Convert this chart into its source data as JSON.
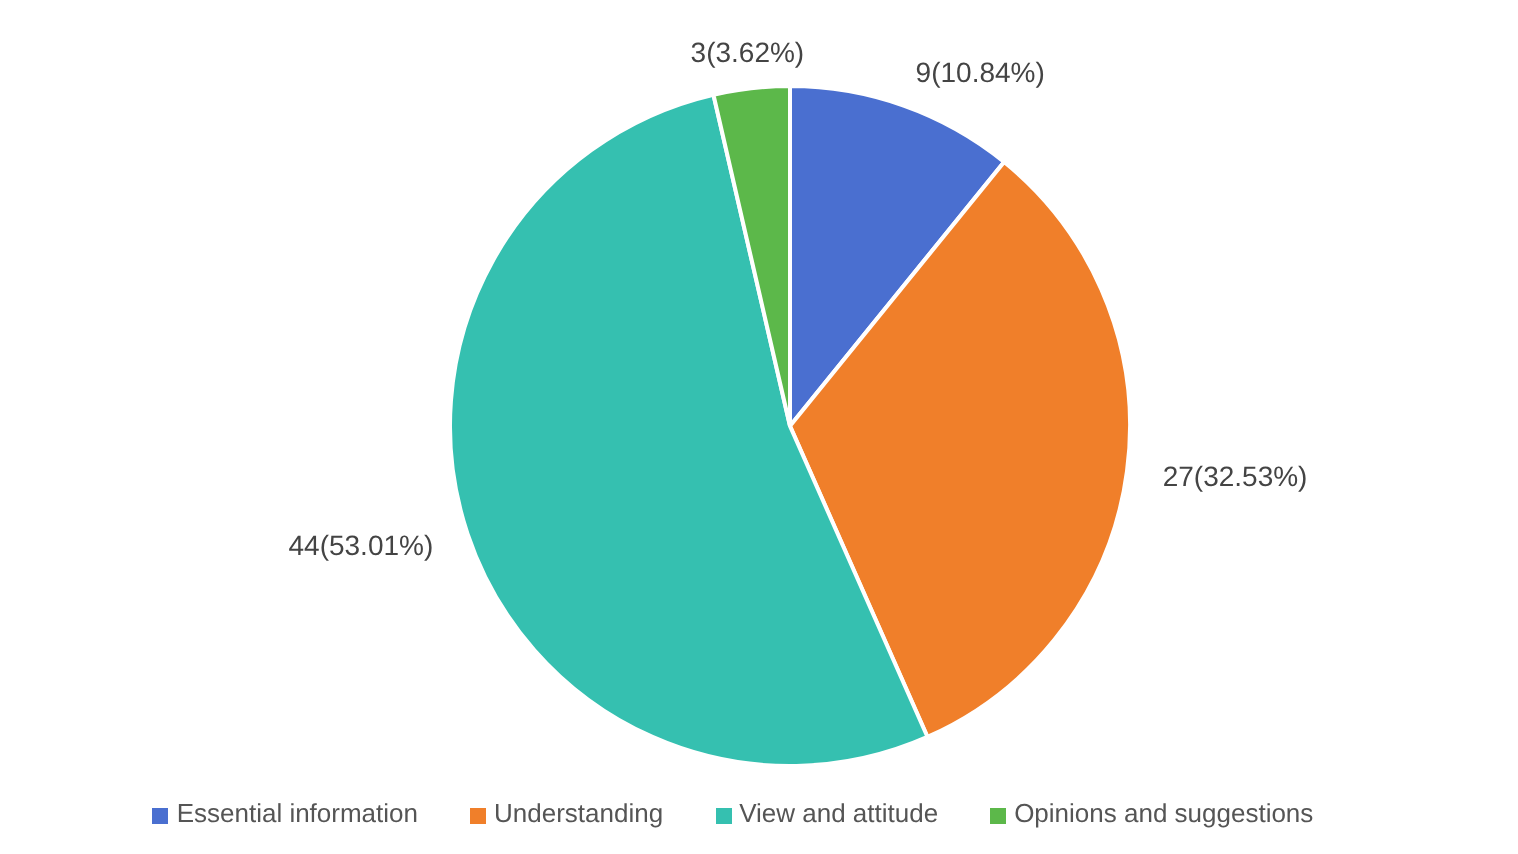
{
  "chart_data": {
    "type": "pie",
    "categories": [
      "Essential information",
      "Understanding",
      "View and attitude",
      "Opinions and suggestions"
    ],
    "values": [
      9,
      27,
      44,
      3
    ],
    "colors": [
      "#4a6fd0",
      "#f07f2a",
      "#35c0b0",
      "#5cb84a"
    ],
    "value_labels": [
      "9(10.84%)",
      "27(32.53%)",
      "44(53.01%)",
      "3(3.62%)"
    ],
    "legend": "bottom"
  }
}
